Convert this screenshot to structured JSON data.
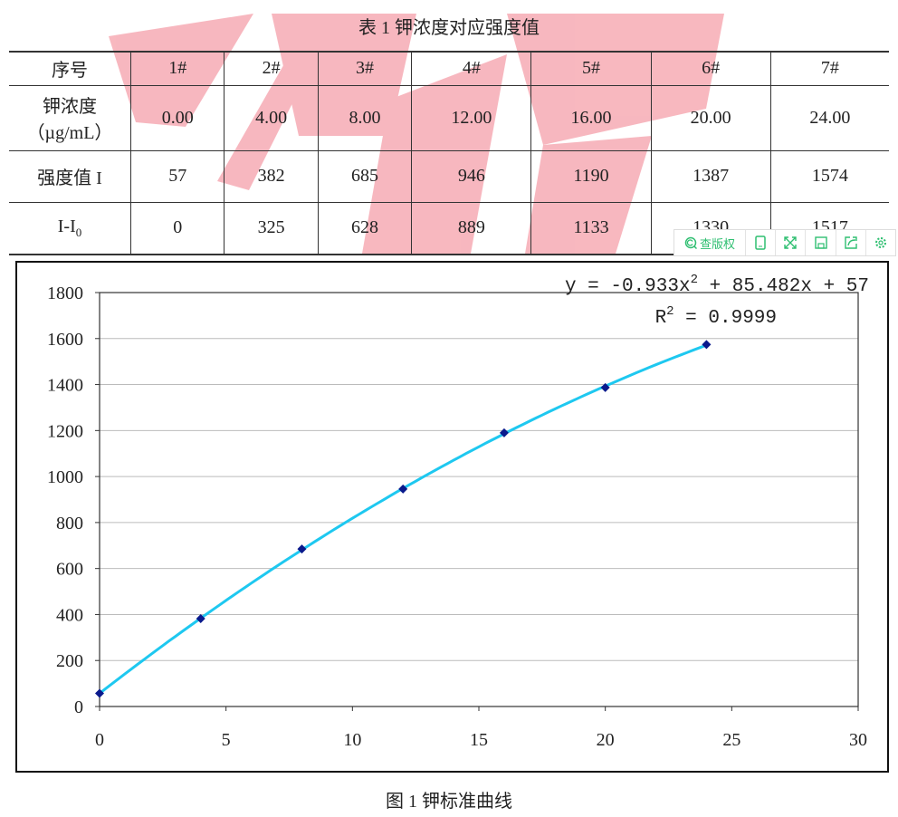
{
  "table": {
    "title": "表 1  钾浓度对应强度值",
    "header": [
      "序号",
      "1#",
      "2#",
      "3#",
      "4#",
      "5#",
      "6#",
      "7#"
    ],
    "rows": [
      {
        "label_line1": "钾浓度",
        "label_line2": "（µg/mL）",
        "values": [
          "0.00",
          "4.00",
          "8.00",
          "12.00",
          "16.00",
          "20.00",
          "24.00"
        ]
      },
      {
        "label": "强度值 I",
        "values": [
          "57",
          "382",
          "685",
          "946",
          "1190",
          "1387",
          "1574"
        ]
      },
      {
        "label": "I-I",
        "label_sub": "0",
        "values": [
          "0",
          "325",
          "628",
          "889",
          "1133",
          "1330",
          "1517"
        ]
      }
    ]
  },
  "toolbar": {
    "copyright_label": "查版权",
    "icons": [
      "copyright-search-icon",
      "tablet-icon",
      "expand-icon",
      "save-icon",
      "share-icon",
      "settings-icon"
    ],
    "color": "#2fbf71"
  },
  "chart_data": {
    "type": "scatter",
    "x": [
      0,
      4,
      8,
      12,
      16,
      20,
      24
    ],
    "y": [
      57,
      382,
      685,
      946,
      1190,
      1387,
      1574
    ],
    "xlim": [
      0,
      30
    ],
    "ylim": [
      0,
      1800
    ],
    "xticks": [
      "0",
      "5",
      "10",
      "15",
      "20",
      "25",
      "30"
    ],
    "yticks": [
      "0",
      "200",
      "400",
      "600",
      "800",
      "1000",
      "1200",
      "1400",
      "1600",
      "1800"
    ],
    "grid": "horizontal",
    "trendline": {
      "type": "polynomial",
      "a": -0.933,
      "b": 85.482,
      "c": 57,
      "equation": "y = -0.933x",
      "eq_sup": "2",
      "eq_rest": " + 85.482x + 57",
      "r2_label": "R",
      "r2_sup": "2",
      "r2_rest": " = 0.9999"
    },
    "marker_color": "#0a1a8c",
    "line_color": "#1ec8f0"
  },
  "figure": {
    "caption": "图 1  钾标准曲线"
  }
}
